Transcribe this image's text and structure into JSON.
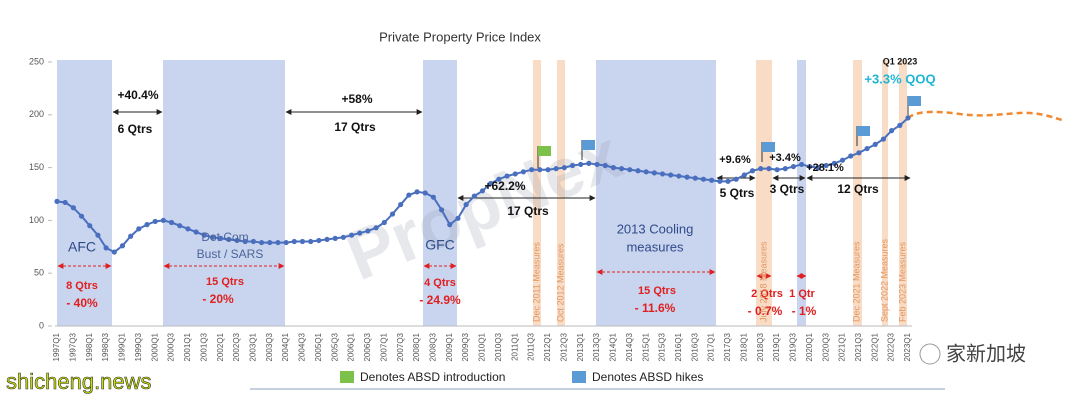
{
  "chart_data": {
    "type": "line",
    "title": "Private Property Price Index",
    "categories": [
      "1997Q1",
      null,
      "1997Q3",
      null,
      "1998Q1",
      null,
      "1998Q3",
      null,
      "1999Q1",
      null,
      "1999Q3",
      null,
      "2000Q1",
      null,
      "2000Q3",
      null,
      "2001Q1",
      null,
      "2001Q3",
      null,
      "2002Q1",
      null,
      "2002Q3",
      null,
      "2003Q1",
      null,
      "2003Q3",
      null,
      "2004Q1",
      null,
      "2004Q3",
      null,
      "2005Q1",
      null,
      "2005Q3",
      null,
      "2006Q1",
      null,
      "2006Q3",
      null,
      "2007Q1",
      null,
      "2007Q3",
      null,
      "2008Q1",
      null,
      "2008Q3",
      null,
      "2009Q1",
      null,
      "2009Q3",
      null,
      "2010Q1",
      null,
      "2010Q3",
      null,
      "2011Q1",
      null,
      "2011Q3",
      null,
      "2012Q1",
      null,
      "2012Q3",
      null,
      "2013Q1",
      null,
      "2013Q3",
      null,
      "2014Q1",
      null,
      "2014Q3",
      null,
      "2015Q1",
      null,
      "2015Q3",
      null,
      "2016Q1",
      null,
      "2016Q3",
      null,
      "2017Q1",
      null,
      "2017Q3",
      null,
      "2018Q1",
      null,
      "2018Q3",
      null,
      "2019Q1",
      null,
      "2019Q3",
      null,
      "2020Q1",
      null,
      "2020Q3",
      null,
      "2021Q1",
      null,
      "2021Q3",
      null,
      "2022Q1",
      null,
      "2022Q3",
      null,
      "2023Q1"
    ],
    "values": [
      118,
      117,
      112,
      104,
      95,
      86,
      74,
      70,
      76,
      85,
      92,
      96,
      99,
      100,
      98,
      95,
      92,
      89,
      86,
      84,
      83,
      82,
      81,
      80,
      80,
      79,
      79,
      79,
      79,
      80,
      80,
      80,
      81,
      82,
      83,
      84,
      86,
      88,
      90,
      93,
      98,
      106,
      115,
      124,
      127,
      126,
      122,
      110,
      96,
      102,
      115,
      123,
      128,
      135,
      139,
      142,
      144,
      146,
      148,
      148,
      148,
      149,
      150,
      152,
      153,
      154,
      153,
      152,
      150,
      149,
      148,
      147,
      146,
      145,
      144,
      143,
      142,
      141,
      140,
      139,
      138,
      137,
      137,
      139,
      143,
      147,
      149,
      149,
      148,
      149,
      151,
      153,
      151,
      150,
      152,
      154,
      157,
      161,
      164,
      168,
      172,
      177,
      185,
      190,
      197
    ],
    "color": "#4a6fbf",
    "ylim": [
      0,
      250
    ],
    "yticks": [
      0,
      50,
      100,
      150,
      200,
      250
    ],
    "annotations": [
      "AFC",
      "Dot Com",
      "Bust / SARS",
      "GFC",
      "2013 Cooling",
      "measures",
      "8 Qtrs",
      "- 40%",
      "15 Qtrs",
      "- 20%",
      "4 Qtrs",
      "- 24.9%",
      "15 Qtrs",
      "- 11.6%",
      "2 Qtrs",
      "- 0.7%",
      "1 Qtr",
      "- 1%",
      "+40.4%",
      "6 Qtrs",
      "+58%",
      "17 Qtrs",
      "+62.2%",
      "17 Qtrs",
      "+9.6%",
      "5 Qtrs",
      "+3.4%",
      "3 Qtrs",
      "+28.1%",
      "12 Qtrs",
      "Q1 2023",
      "+3.3% QOQ"
    ],
    "measures": [
      "Dec 2011 Measures",
      "Oct 2012 Measures",
      "July 2018 Measures",
      "Dec 2021 Measures",
      "Sept 2022 Measures",
      "Feb 2023 Measures"
    ],
    "legend": [
      "Denotes ABSD introduction",
      "Denotes ABSD hikes"
    ],
    "watermark": "PropNex",
    "source": "shicheng.news",
    "account": "家新加坡"
  }
}
